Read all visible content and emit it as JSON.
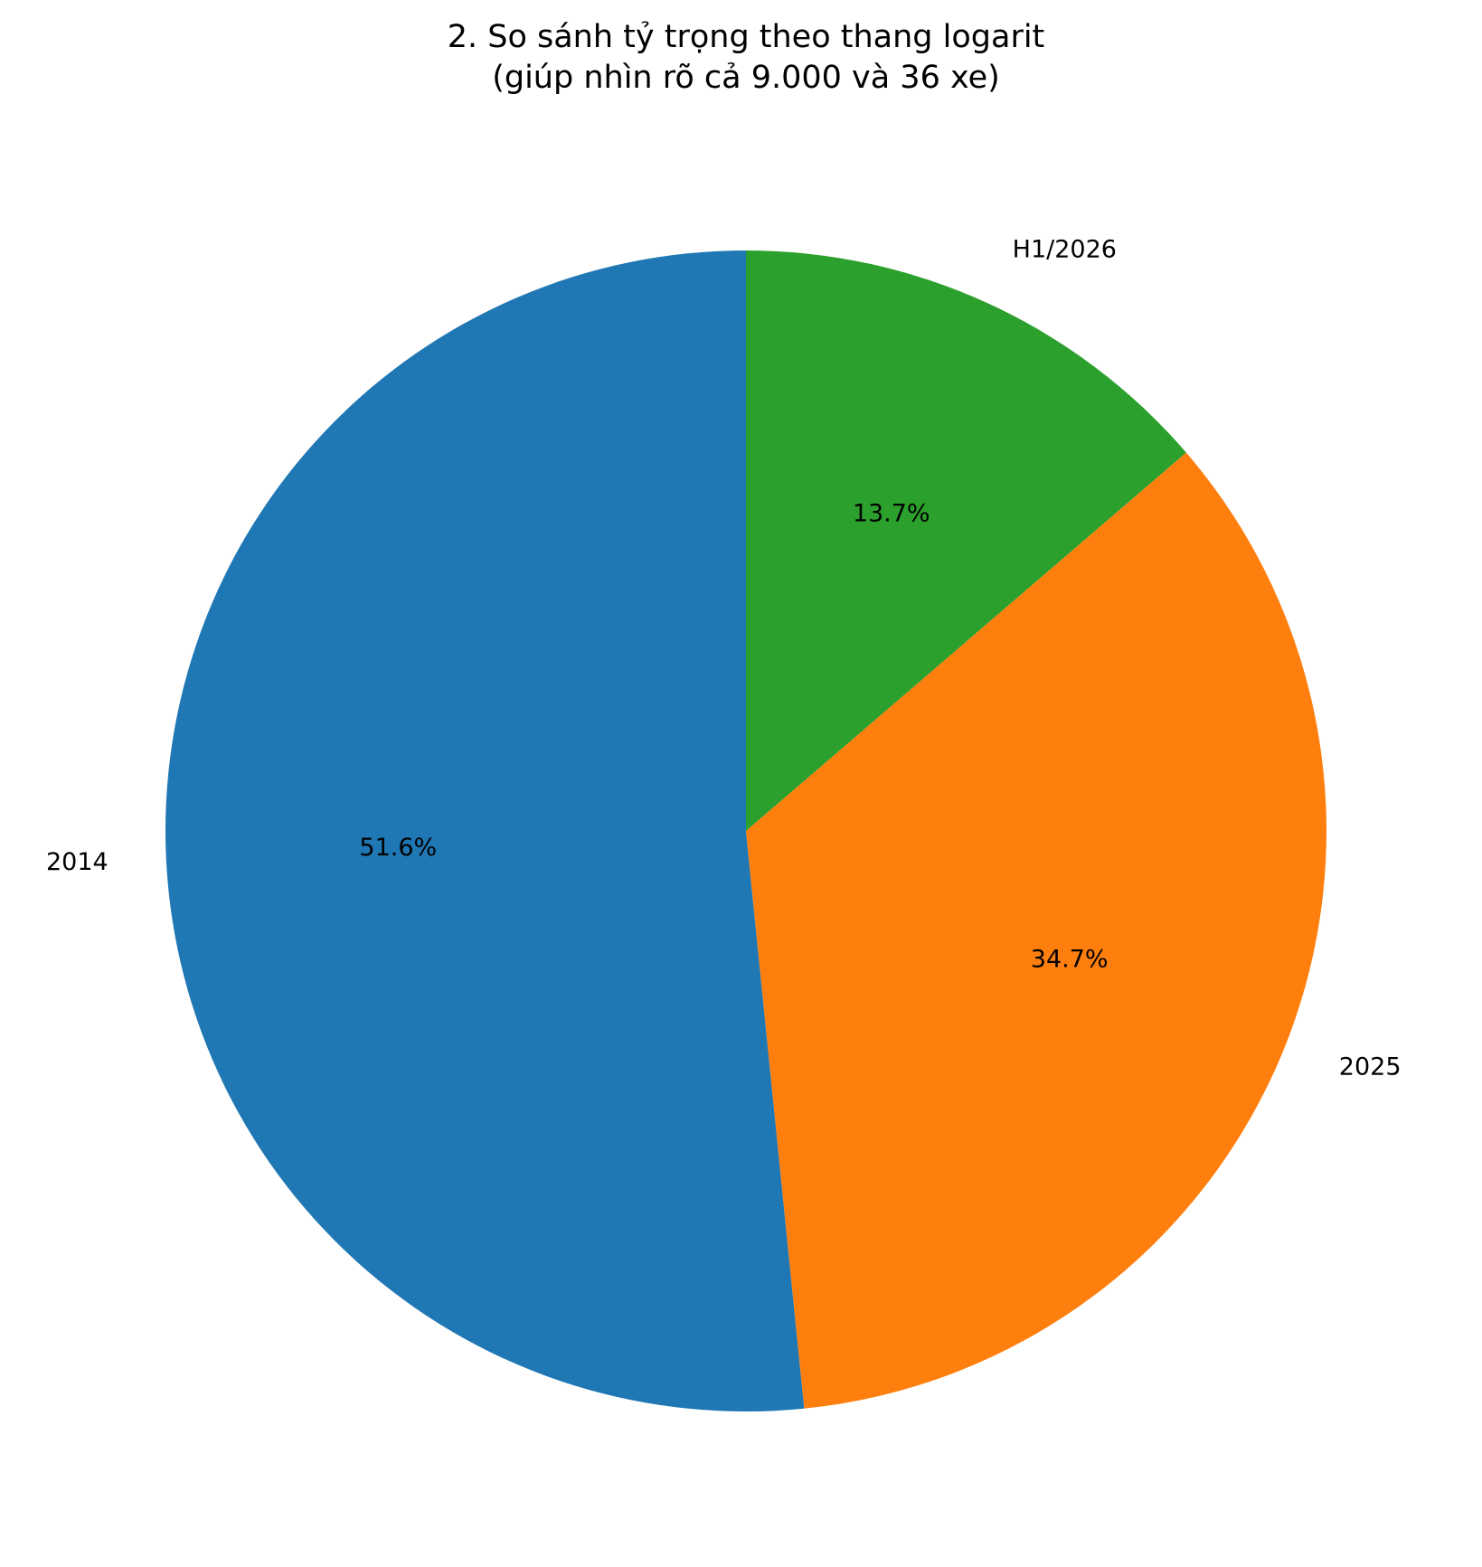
{
  "chart_data": {
    "type": "pie",
    "title": "2. So sánh tỷ trọng theo thang logarit",
    "subtitle": "(giúp nhìn rõ cả 9.000 và 36 xe)",
    "categories": [
      "2014",
      "2025",
      "H1/2026"
    ],
    "values": [
      51.6,
      34.7,
      13.7
    ],
    "value_labels": [
      "51.6%",
      "34.7%",
      "13.7%"
    ],
    "colors": [
      "#1f77b4",
      "#ff7f0e",
      "#2ca02c"
    ]
  }
}
